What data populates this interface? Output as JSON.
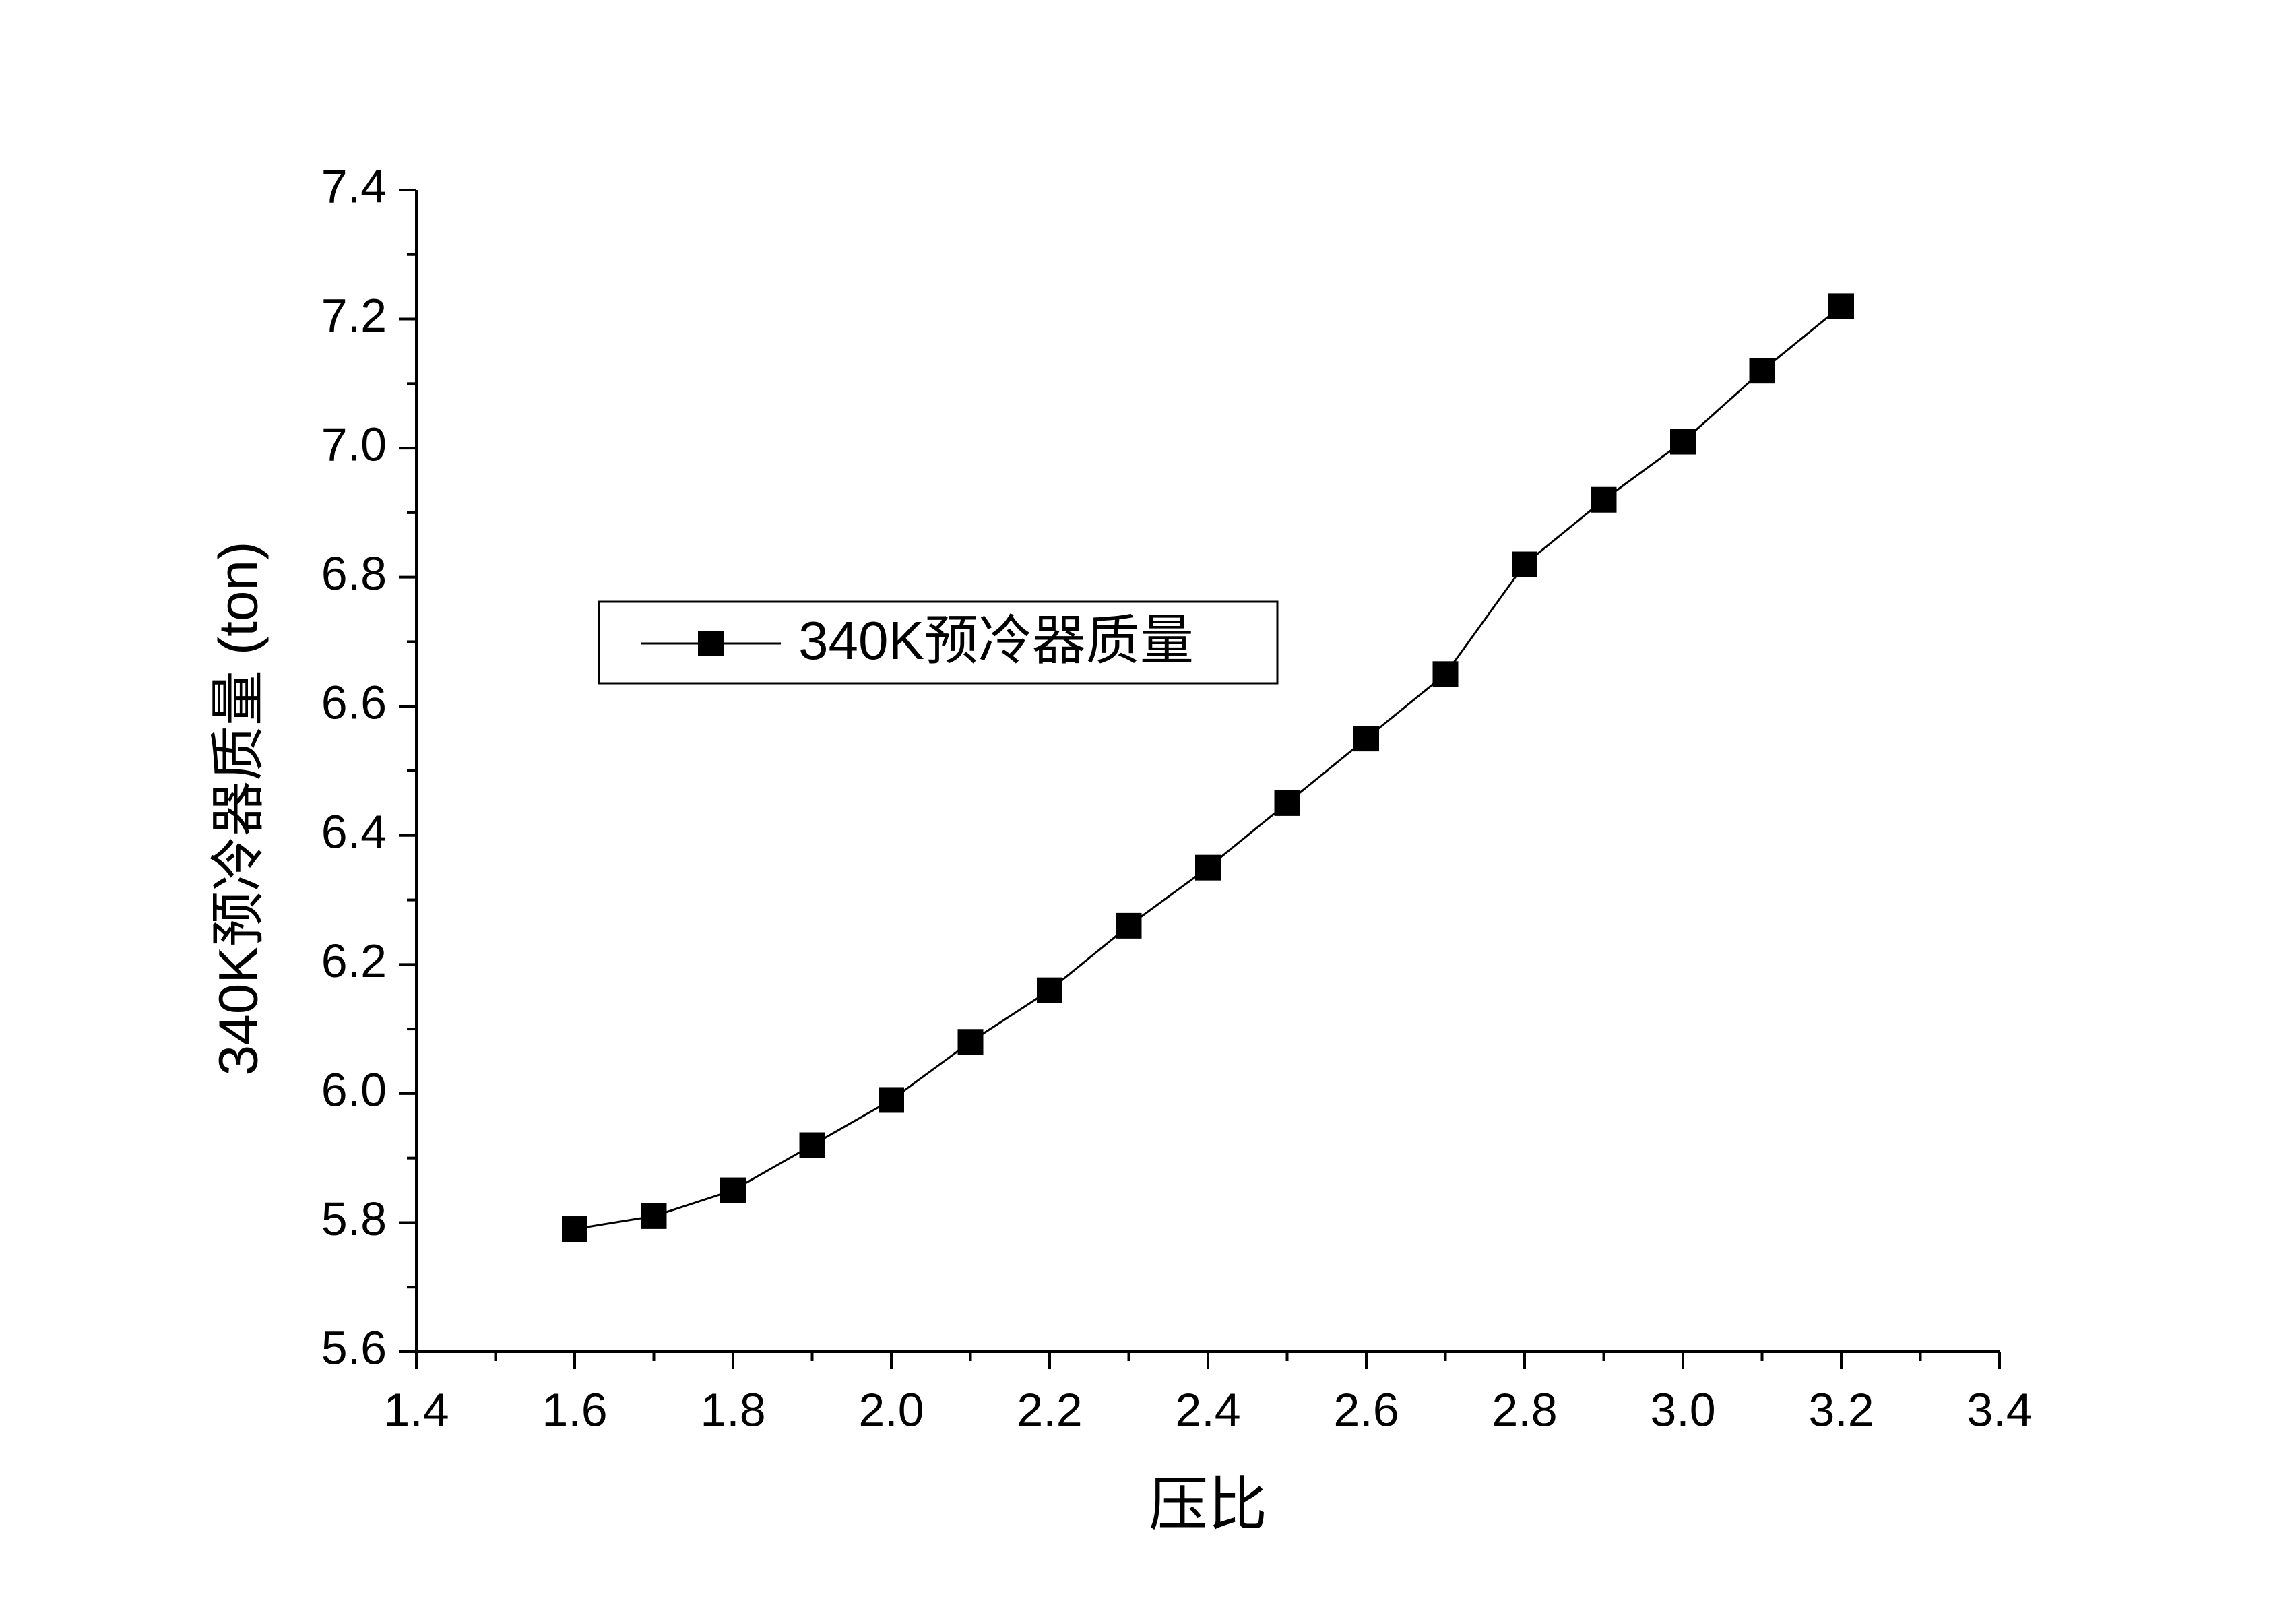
{
  "chart_data": {
    "type": "line",
    "x_label": "压比",
    "y_label": "340K预冷器质量 (ton)",
    "x": [
      1.6,
      1.7,
      1.8,
      1.9,
      2.0,
      2.1,
      2.2,
      2.3,
      2.4,
      2.5,
      2.6,
      2.7,
      2.8,
      2.9,
      3.0,
      3.1,
      3.2
    ],
    "series": [
      {
        "name": "340K预冷器质量",
        "color": "#000000",
        "values": [
          5.79,
          5.81,
          5.85,
          5.92,
          5.99,
          6.08,
          6.16,
          6.26,
          6.35,
          6.45,
          6.55,
          6.65,
          6.82,
          6.92,
          7.01,
          7.12,
          7.22
        ]
      }
    ],
    "xlim": [
      1.4,
      3.4
    ],
    "xticks": [
      1.4,
      1.6,
      1.8,
      {
        "value": 2,
        "label": "2.0"
      },
      2.2,
      2.4,
      2.6,
      2.8,
      {
        "value": 3,
        "label": "3.0"
      },
      3.2,
      3.4
    ],
    "ylim": [
      5.6,
      7.4
    ],
    "yticks": [
      5.6,
      5.8,
      {
        "value": 6,
        "label": "6.0"
      },
      6.2,
      6.4,
      6.6,
      6.8,
      {
        "value": 7,
        "label": "7.0"
      },
      7.2,
      7.4
    ],
    "grid": false,
    "legend": "upper-left"
  }
}
